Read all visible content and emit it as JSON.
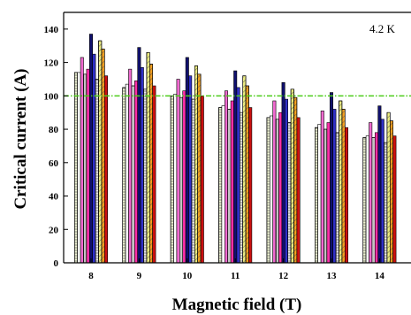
{
  "chart_data": {
    "type": "bar",
    "xlabel": "Magnetic field (T)",
    "ylabel": "Critical current (A)",
    "annotation": "4.2 K",
    "categories": [
      "8",
      "9",
      "10",
      "11",
      "12",
      "13",
      "14"
    ],
    "ylim": [
      0,
      150
    ],
    "yticks": [
      0,
      20,
      40,
      60,
      80,
      100,
      120,
      140
    ],
    "grid": false,
    "reference_line": {
      "value": 100,
      "color": "#4ccc1a",
      "style": "dash-dot"
    },
    "series": [
      {
        "values": [
          114,
          105,
          100,
          93,
          87,
          81,
          75
        ],
        "color": "#eef2d2",
        "pattern": "hlines"
      },
      {
        "values": [
          114,
          107,
          101,
          94,
          88,
          83,
          76
        ],
        "color": "#ffffff",
        "pattern": "none"
      },
      {
        "values": [
          123,
          116,
          110,
          103,
          97,
          91,
          84
        ],
        "color": "#f06ad0",
        "pattern": "none"
      },
      {
        "values": [
          113,
          106,
          99,
          92,
          86,
          80,
          75
        ],
        "color": "#ffffff",
        "pattern": "vlines"
      },
      {
        "values": [
          116,
          109,
          103,
          97,
          90,
          84,
          78
        ],
        "color": "#ff2fa8",
        "pattern": "none"
      },
      {
        "values": [
          137,
          129,
          123,
          115,
          108,
          102,
          94
        ],
        "color": "#10106e",
        "pattern": "none"
      },
      {
        "values": [
          125,
          117,
          112,
          105,
          98,
          92,
          86
        ],
        "color": "#3030c8",
        "pattern": "none"
      },
      {
        "values": [
          110,
          104,
          98,
          90,
          84,
          78,
          72
        ],
        "color": "#e8e8e8",
        "pattern": "hlines"
      },
      {
        "values": [
          133,
          126,
          118,
          112,
          104,
          97,
          90
        ],
        "color": "#ecec80",
        "pattern": "diagonal"
      },
      {
        "values": [
          128,
          119,
          113,
          106,
          99,
          92,
          85
        ],
        "color": "#f4a020",
        "pattern": "diagonal"
      },
      {
        "values": [
          112,
          106,
          100,
          93,
          87,
          81,
          76
        ],
        "color": "#cc1010",
        "pattern": "none"
      }
    ]
  }
}
